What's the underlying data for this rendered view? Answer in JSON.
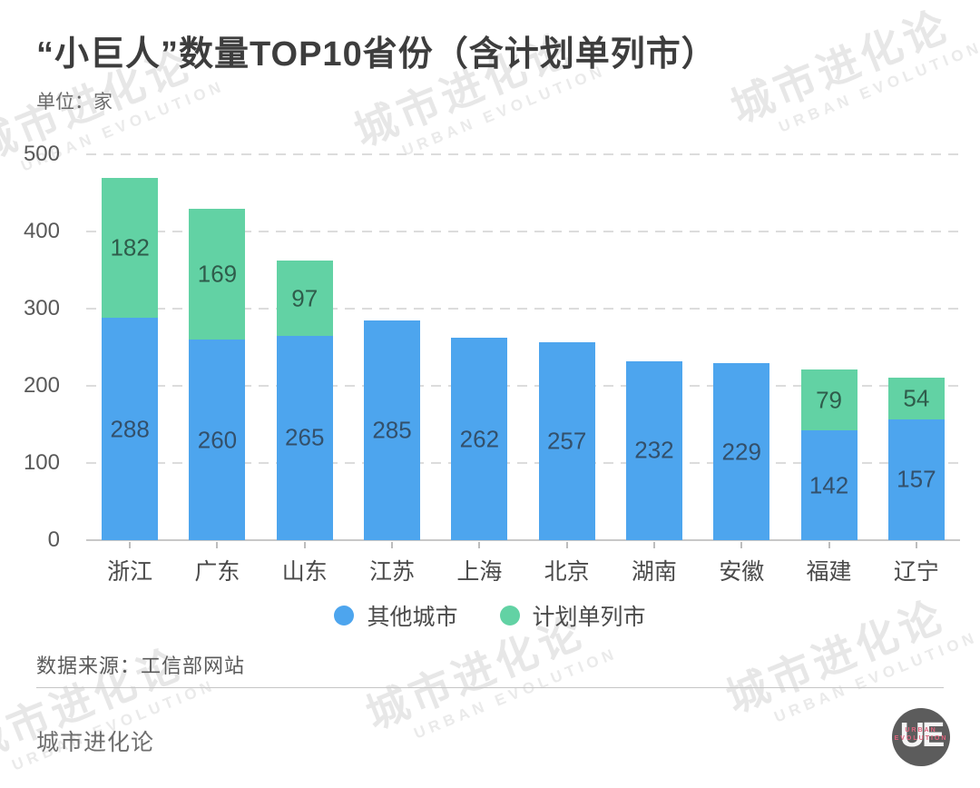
{
  "title": "“小巨人”数量TOP10省份（含计划单列市）",
  "unit_label": "单位：家",
  "chart_data": {
    "type": "bar",
    "stacked": true,
    "title": "“小巨人”数量TOP10省份（含计划单列市）",
    "unit": "家",
    "categories": [
      "浙江",
      "广东",
      "山东",
      "江苏",
      "上海",
      "北京",
      "湖南",
      "安徽",
      "福建",
      "辽宁"
    ],
    "series": [
      {
        "name": "其他城市",
        "color": "#4da5ee",
        "label_color": "#33506b",
        "values": [
          288,
          260,
          265,
          285,
          262,
          257,
          232,
          229,
          142,
          157
        ]
      },
      {
        "name": "计划单列市",
        "color": "#62d2a4",
        "label_color": "#2f5c4b",
        "values": [
          182,
          169,
          97,
          0,
          0,
          0,
          0,
          0,
          79,
          54
        ]
      }
    ],
    "totals": [
      470,
      429,
      362,
      285,
      262,
      257,
      232,
      229,
      221,
      211
    ],
    "ylim": [
      0,
      500
    ],
    "yticks": [
      0,
      100,
      200,
      300,
      400,
      500
    ],
    "grid": "horizontal-dashed",
    "legend_position": "bottom"
  },
  "legend": {
    "items": [
      {
        "label": "其他城市",
        "color": "#4da5ee"
      },
      {
        "label": "计划单列市",
        "color": "#62d2a4"
      }
    ]
  },
  "source_label": "数据来源：工信部网站",
  "footer_brand": "城市进化论",
  "watermark": {
    "line1": "城市进化论",
    "line2": "URBAN EVOLUTION"
  },
  "logo": {
    "text": "UE",
    "subtext_line1": "URBAN",
    "subtext_line2": "EVOLUTION"
  },
  "colors": {
    "bar_blue": "#4da5ee",
    "bar_green": "#62d2a4",
    "grid": "#dcdcdc",
    "axis_line": "#c8c8c8",
    "title_text": "#3d3d3d",
    "watermark_text": "#e7e7e7",
    "logo_bg": "#5c5c5c",
    "logo_subtext": "#e0647e"
  }
}
